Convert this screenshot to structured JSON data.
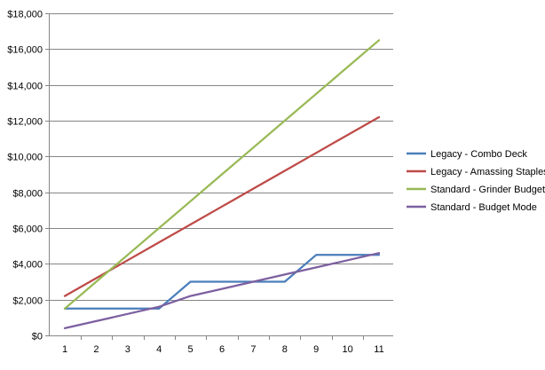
{
  "chart_data": {
    "type": "line",
    "title": "",
    "xlabel": "",
    "ylabel": "",
    "x": [
      1,
      2,
      3,
      4,
      5,
      6,
      7,
      8,
      9,
      10,
      11
    ],
    "ylim": [
      0,
      18000
    ],
    "y_ticks": [
      0,
      2000,
      4000,
      6000,
      8000,
      10000,
      12000,
      14000,
      16000,
      18000
    ],
    "y_tick_labels": [
      "$0",
      "$2,000",
      "$4,000",
      "$6,000",
      "$8,000",
      "$10,000",
      "$12,000",
      "$14,000",
      "$16,000",
      "$18,000"
    ],
    "grid": true,
    "legend_position": "right",
    "series": [
      {
        "name": "Legacy - Combo Deck",
        "color": "#4A7EBB",
        "values": [
          1500,
          1500,
          1500,
          1500,
          3000,
          3000,
          3000,
          3000,
          4500,
          4500,
          4500
        ]
      },
      {
        "name": "Legacy - Amassing Staples",
        "color": "#BE4B48",
        "values": [
          2200,
          3200,
          4200,
          5200,
          6200,
          7200,
          8200,
          9200,
          10200,
          11200,
          12200
        ]
      },
      {
        "name": "Standard - Grinder Budget",
        "color": "#98B954",
        "values": [
          1500,
          3000,
          4500,
          6000,
          7500,
          9000,
          10500,
          12000,
          13500,
          15000,
          16500
        ]
      },
      {
        "name": "Standard - Budget Mode",
        "color": "#7D60A0",
        "values": [
          400,
          800,
          1200,
          1600,
          2200,
          2600,
          3000,
          3400,
          3800,
          4200,
          4600
        ]
      }
    ]
  }
}
